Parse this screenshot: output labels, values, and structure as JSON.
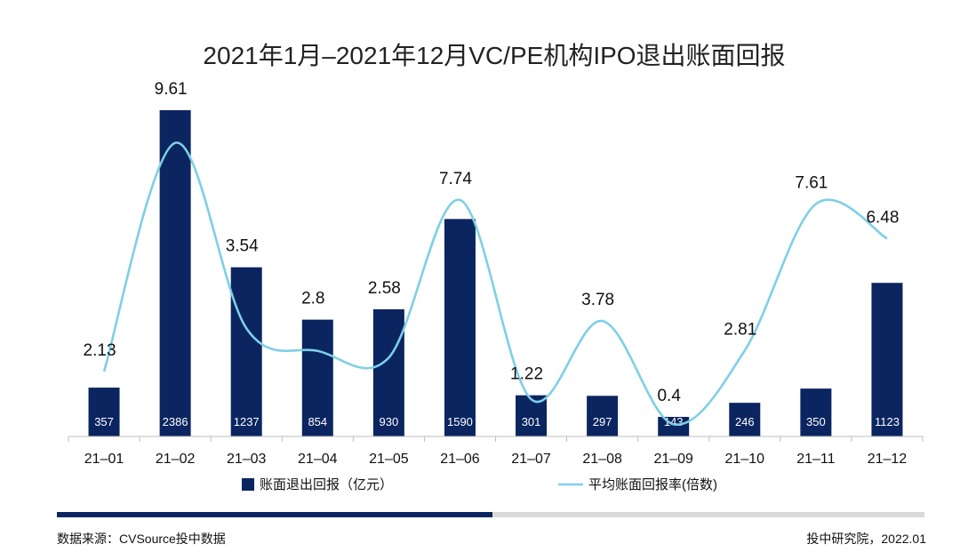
{
  "chart_data": {
    "type": "bar",
    "title": "2021年1月–2021年12月VC/PE机构IPO退出账面回报",
    "categories": [
      "21–01",
      "21–02",
      "21–03",
      "21–04",
      "21–05",
      "21–06",
      "21–07",
      "21–08",
      "21–09",
      "21–10",
      "21–11",
      "21–12"
    ],
    "series": [
      {
        "name": "账面退出回报（亿元）",
        "kind": "bar",
        "values": [
          357,
          2386,
          1237,
          854,
          930,
          1590,
          301,
          297,
          143,
          246,
          350,
          1123
        ],
        "color": "#0b2560"
      },
      {
        "name": "平均账面回报率(倍数)",
        "kind": "line",
        "values": [
          2.13,
          9.61,
          3.54,
          2.8,
          2.58,
          7.74,
          1.22,
          3.78,
          0.4,
          2.81,
          7.61,
          6.48
        ],
        "color": "#7ecfe6"
      }
    ],
    "legend_position": "bottom",
    "bar_axis_max": 2600,
    "line_axis_max": 11
  },
  "footer": {
    "source": "数据来源：CVSource投中数据",
    "credit": "投中研究院，2022.01"
  },
  "colors": {
    "rule_dark": "#0b2560",
    "rule_light": "#d9d9d9"
  }
}
